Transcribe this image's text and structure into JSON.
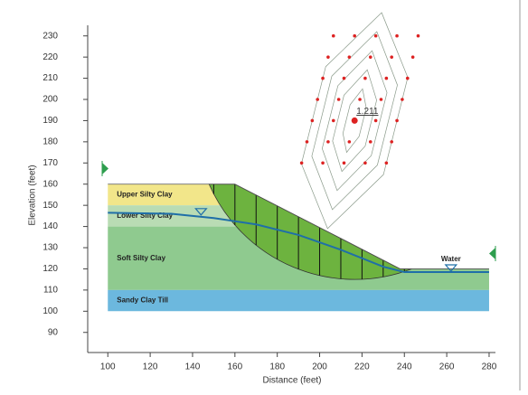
{
  "chart_data": {
    "type": "slope",
    "x_label": "Distance (feet)",
    "y_label": "Elevation (feet)",
    "xlim": [
      90.5,
      283
    ],
    "ylim": [
      80.5,
      235
    ],
    "xticks": [
      100,
      120,
      140,
      160,
      180,
      200,
      220,
      240,
      260,
      280
    ],
    "yticks": [
      90,
      100,
      110,
      120,
      130,
      140,
      150,
      160,
      170,
      180,
      190,
      200,
      210,
      220,
      230
    ],
    "layers": [
      {
        "name": "Upper Silty Clay",
        "color": "#f2e68a",
        "x": [
          100,
          100,
          160,
          179.5
        ],
        "y": [
          150,
          160,
          160,
          150
        ]
      },
      {
        "name": "Lower Silty Clay",
        "color": "#b9dcb4",
        "x": [
          100,
          100,
          179.5,
          199
        ],
        "y": [
          140,
          150,
          150,
          140
        ]
      },
      {
        "name": "Soft Silty Clay",
        "color": "#8fca8f",
        "x": [
          100,
          100,
          199,
          238,
          280,
          280
        ],
        "y": [
          110,
          140,
          140,
          120,
          120,
          110
        ]
      },
      {
        "name": "Sandy Clay Till",
        "color": "#6cb8de",
        "x": [
          100,
          100,
          280,
          280
        ],
        "y": [
          100,
          110,
          110,
          100
        ]
      }
    ],
    "surface": {
      "x": [
        100,
        160,
        238,
        280
      ],
      "y": [
        160,
        160,
        120,
        120
      ]
    },
    "water": {
      "name": "Water",
      "color": "#1f6fa8",
      "x": [
        100,
        130,
        150,
        170,
        190,
        210,
        230,
        240,
        280
      ],
      "y": [
        146.5,
        146,
        144,
        141,
        136,
        129,
        121,
        118.5,
        118.5
      ]
    },
    "grid_points": {
      "color": "#dd2222",
      "x": [
        191.5,
        201.5,
        211.5,
        221.5,
        231.5,
        194,
        204,
        214,
        224,
        234,
        196.5,
        206.5,
        216.5,
        226.5,
        236.5,
        199,
        209,
        219,
        229,
        239,
        201.5,
        211.5,
        221.5,
        231.5,
        241.5,
        204,
        214,
        224,
        234,
        244,
        206.5,
        216.5,
        226.5,
        236.5,
        246.5
      ],
      "y": [
        170,
        170,
        170,
        170,
        170,
        180,
        180,
        180,
        180,
        180,
        190,
        190,
        190,
        190,
        190,
        200,
        200,
        200,
        200,
        200,
        210,
        210,
        210,
        210,
        210,
        220,
        220,
        220,
        220,
        220,
        230,
        230,
        230,
        230,
        230
      ]
    },
    "critical": {
      "x": 216.5,
      "y": 190,
      "factor_of_safety": "1.211",
      "radius": 75,
      "color": "#6db33f"
    }
  }
}
